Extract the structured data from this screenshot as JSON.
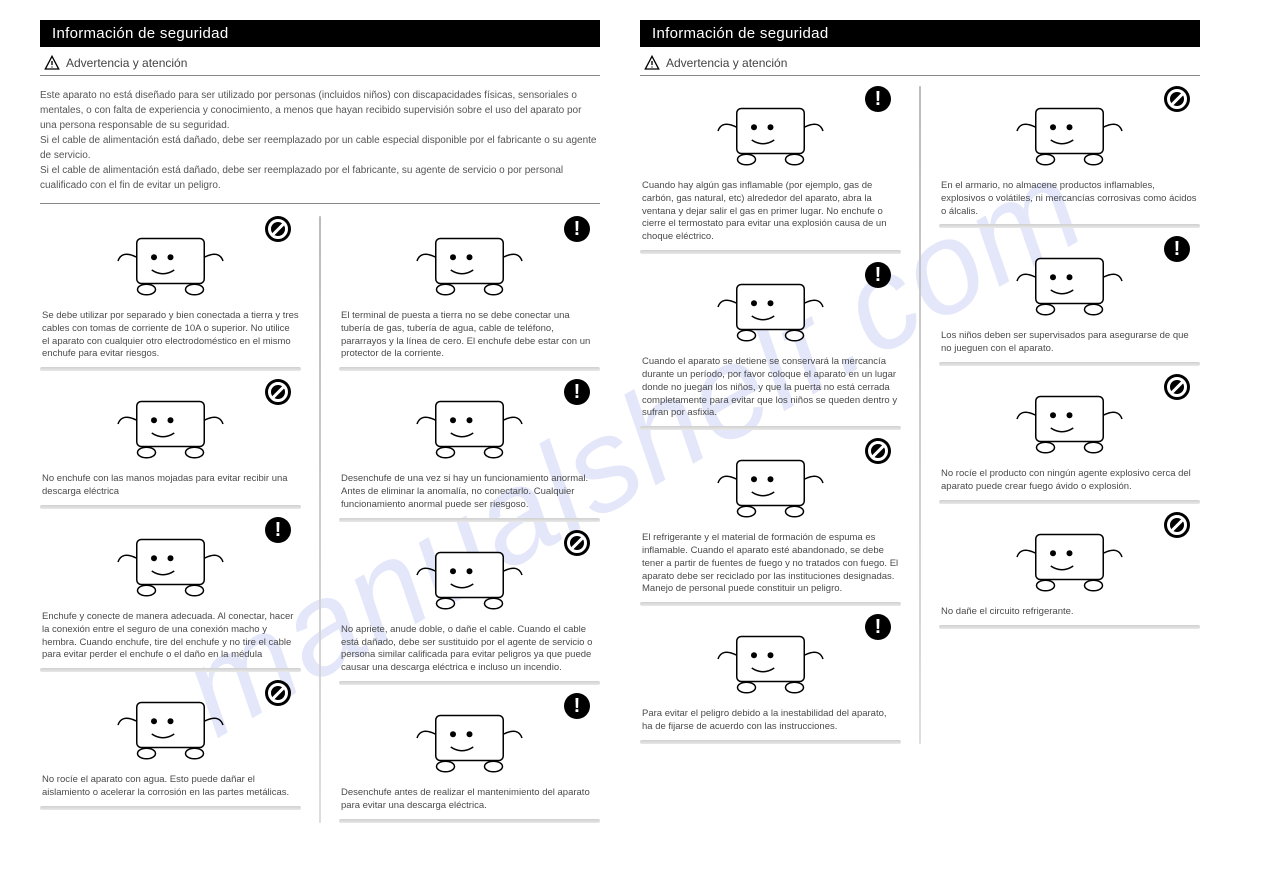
{
  "watermark": "manualshelf.com",
  "colors": {
    "title_bg": "#000000",
    "title_fg": "#ffffff",
    "text": "#4a4a4a",
    "watermark": "rgba(100,120,220,0.18)"
  },
  "left": {
    "title": "Información de seguridad",
    "subtitle": "Advertencia   y atención",
    "intro": "Este aparato no está diseñado para ser utilizado por personas (incluidos niños) con discapacidades físicas, sensoriales o mentales, o con falta de experiencia y conocimiento, a menos que hayan recibido supervisión sobre el uso del aparato por una persona responsable de su seguridad.\nSi el cable de alimentación está dañado, debe ser reemplazado por un cable especial disponible por el fabricante o su agente de servicio.\nSi el cable de alimentación está dañado, debe ser reemplazado por el fabricante, su agente de servicio o por personal cualificado con el fin de evitar un peligro.",
    "col1": [
      {
        "badge": "prohibit",
        "text": "Se debe utilizar por separado y bien conectada a tierra y tres cables con tomas de corriente de 10A o superior. No utilice el aparato con cualquier otro electrodoméstico en el mismo enchufe para evitar riesgos."
      },
      {
        "badge": "prohibit",
        "text": "No enchufe con las manos mojadas para evitar recibir una descarga eléctrica"
      },
      {
        "badge": "excl",
        "text": "Enchufe y conecte de manera adecuada. Al conectar, hacer la conexión entre el seguro de una conexión macho y hembra. Cuando enchufe, tire del enchufe y no tire el cable para evitar perder el enchufe o el daño en la médula"
      },
      {
        "badge": "prohibit",
        "text": "No rocíe el aparato con agua. Esto puede dañar el aislamiento o acelerar la corrosión en las partes metálicas."
      }
    ],
    "col2": [
      {
        "badge": "excl",
        "text": "El terminal de puesta a tierra no se debe conectar una tubería de gas, tubería de agua, cable de teléfono, pararrayos y la línea de cero. El enchufe debe estar con un protector de la corriente."
      },
      {
        "badge": "excl",
        "text": "Desenchufe de una vez si hay un funcionamiento anormal. Antes de eliminar la anomalía, no conectarlo. Cualquier funcionamiento anormal puede ser riesgoso."
      },
      {
        "badge": "prohibit",
        "text": "No apriete, anude doble, o dañe el cable. Cuando el cable está dañado, debe ser sustituido por el agente de servicio o persona similar calificada para evitar peligros ya que puede causar una descarga eléctrica e incluso un incendio."
      },
      {
        "badge": "excl",
        "text": "Desenchufe antes de realizar el mantenimiento del aparato para evitar una descarga eléctrica."
      }
    ]
  },
  "right": {
    "title": "Información de seguridad",
    "subtitle": "Advertencia y atención",
    "col1": [
      {
        "badge": "excl",
        "text": "Cuando hay algún gas inflamable (por ejemplo, gas de carbón, gas natural, etc) alrededor del aparato, abra la ventana y dejar salir el gas en primer lugar. No enchufe o cierre el termostato para evitar una explosión causa de un choque eléctrico."
      },
      {
        "badge": "excl",
        "text": "Cuando el aparato se detiene   se conservará la mercancía durante un período, por favor coloque el aparato en un lugar donde no juegan los niños, y que la puerta no está cerrada completamente para evitar que los niños se queden dentro y sufran por asfixia."
      },
      {
        "badge": "prohibit",
        "text": "El refrigerante y el material de formación de espuma es inflamable. Cuando el aparato esté abandonado, se debe tener a partir de fuentes de fuego y no tratados con fuego. El aparato debe ser reciclado por las instituciones designadas. Manejo de personal puede constituir un peligro."
      },
      {
        "badge": "excl",
        "text": "Para evitar el peligro debido a la inestabilidad del aparato, ha de fijarse de acuerdo con las instrucciones."
      }
    ],
    "col2": [
      {
        "badge": "prohibit",
        "text": "En el armario, no almacene productos inflamables, explosivos o volátiles, ni mercancías corrosivas como ácidos o álcalis."
      },
      {
        "badge": "excl",
        "text": "Los niños deben ser supervisados para asegurarse de que no jueguen con el aparato."
      },
      {
        "badge": "prohibit",
        "text": "No rocíe el producto con ningún agente explosivo cerca del aparato puede crear fuego ávido o explosión."
      },
      {
        "badge": "prohibit",
        "text": "No dañe el circuito refrigerante."
      }
    ]
  }
}
